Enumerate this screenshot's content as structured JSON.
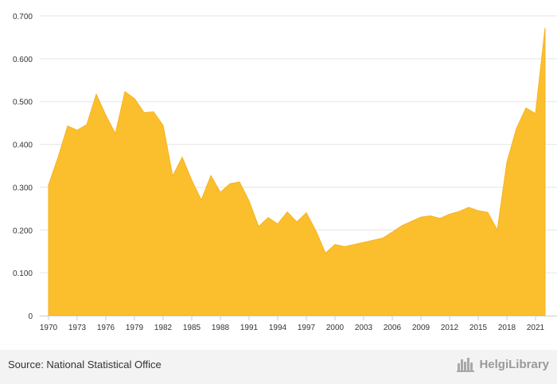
{
  "chart_data": {
    "type": "area",
    "title": "",
    "xlabel": "",
    "ylabel": "",
    "color": "#FBBF2E",
    "ylim": [
      0,
      0.7
    ],
    "yticks": [
      "0",
      "0.100",
      "0.200",
      "0.300",
      "0.400",
      "0.500",
      "0.600",
      "0.700"
    ],
    "ytick_values": [
      0,
      0.1,
      0.2,
      0.3,
      0.4,
      0.5,
      0.6,
      0.7
    ],
    "xticks": [
      "1970",
      "1973",
      "1976",
      "1979",
      "1982",
      "1985",
      "1988",
      "1991",
      "1994",
      "1997",
      "2000",
      "2003",
      "2006",
      "2009",
      "2012",
      "2015",
      "2018",
      "2021"
    ],
    "xtick_values": [
      1970,
      1973,
      1976,
      1979,
      1982,
      1985,
      1988,
      1991,
      1994,
      1997,
      2000,
      2003,
      2006,
      2009,
      2012,
      2015,
      2018,
      2021
    ],
    "grid": true,
    "x": [
      1970,
      1971,
      1972,
      1973,
      1974,
      1975,
      1976,
      1977,
      1978,
      1979,
      1980,
      1981,
      1982,
      1983,
      1984,
      1985,
      1986,
      1987,
      1988,
      1989,
      1990,
      1991,
      1992,
      1993,
      1994,
      1995,
      1996,
      1997,
      1998,
      1999,
      2000,
      2001,
      2002,
      2003,
      2004,
      2005,
      2006,
      2007,
      2008,
      2009,
      2010,
      2011,
      2012,
      2013,
      2014,
      2015,
      2016,
      2017,
      2018,
      2019,
      2020,
      2021,
      2022
    ],
    "values": [
      0.305,
      0.37,
      0.443,
      0.433,
      0.446,
      0.517,
      0.468,
      0.425,
      0.523,
      0.507,
      0.474,
      0.476,
      0.444,
      0.326,
      0.37,
      0.316,
      0.27,
      0.327,
      0.288,
      0.308,
      0.312,
      0.268,
      0.208,
      0.229,
      0.214,
      0.242,
      0.219,
      0.24,
      0.198,
      0.146,
      0.166,
      0.161,
      0.166,
      0.171,
      0.176,
      0.181,
      0.195,
      0.21,
      0.22,
      0.23,
      0.233,
      0.227,
      0.237,
      0.243,
      0.253,
      0.245,
      0.241,
      0.2,
      0.358,
      0.437,
      0.485,
      0.472,
      0.672
    ]
  },
  "footer": {
    "source": "Source: National Statistical Office",
    "brand": "HelgiLibrary"
  },
  "icons": {
    "brand_icon": "city-skyline-icon"
  }
}
